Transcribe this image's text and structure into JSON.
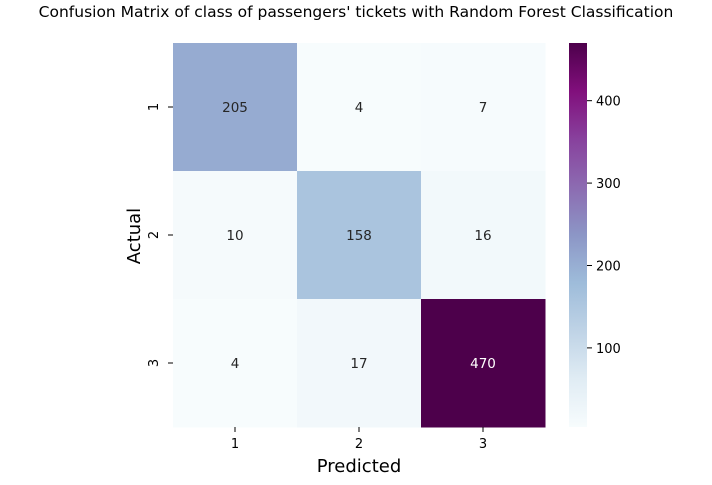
{
  "chart_data": {
    "type": "heatmap",
    "title": "Confusion Matrix of class of passengers' tickets with Random Forest Classification",
    "xlabel": "Predicted",
    "ylabel": "Actual",
    "x_categories": [
      "1",
      "2",
      "3"
    ],
    "y_categories": [
      "1",
      "2",
      "3"
    ],
    "values": [
      [
        205,
        4,
        7
      ],
      [
        10,
        158,
        16
      ],
      [
        4,
        17,
        470
      ]
    ],
    "colormap": "BuPu",
    "color_range": [
      4,
      470
    ],
    "colorbar_ticks": [
      100,
      200,
      300,
      400
    ],
    "colorbar_tick_labels": [
      "100",
      "200",
      "300",
      "400"
    ]
  }
}
